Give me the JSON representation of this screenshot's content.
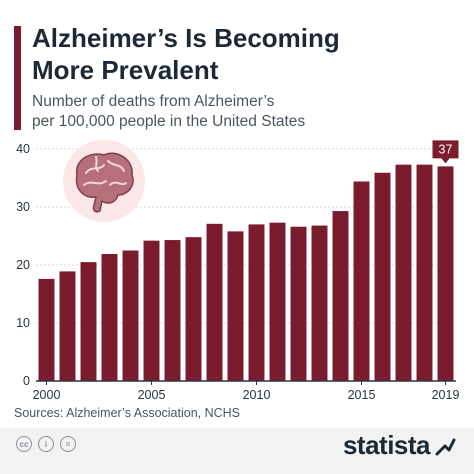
{
  "header": {
    "title_line1": "Alzheimer’s Is Becoming",
    "title_line2": "More Prevalent",
    "subtitle_line1": "Number of deaths from Alzheimer’s",
    "subtitle_line2": "per 100,000 people in the United States"
  },
  "colors": {
    "bar": "#7a1c2e",
    "accent": "#7a1c2e",
    "grid": "#d9d9d9",
    "axis_text": "#2a3540",
    "callout": "#7a1c2e",
    "brain": "#b5707c",
    "brain_bg": "#fbe7e7"
  },
  "icons": {
    "illustration": "brain-icon"
  },
  "chart_data": {
    "type": "bar",
    "x": [
      2000,
      2001,
      2002,
      2003,
      2004,
      2005,
      2006,
      2007,
      2008,
      2009,
      2010,
      2011,
      2012,
      2013,
      2014,
      2015,
      2016,
      2017,
      2018,
      2019
    ],
    "values": [
      17.6,
      18.9,
      20.5,
      21.9,
      22.5,
      24.2,
      24.3,
      24.8,
      27.1,
      25.8,
      27.0,
      27.3,
      26.6,
      26.8,
      29.3,
      34.4,
      35.9,
      37.3,
      37.3,
      37.0
    ],
    "x_tick_labels": [
      "2000",
      "2005",
      "2010",
      "2015",
      "2019"
    ],
    "y_ticks": [
      0,
      10,
      20,
      30,
      40
    ],
    "ylim": [
      0,
      40
    ],
    "grid": true,
    "callout": {
      "label": "37",
      "year": 2019
    }
  },
  "footer": {
    "source": "Sources: Alzheimer’s Association, NCHS",
    "license_icons": [
      "cc-icon",
      "by-icon",
      "nd-icon"
    ],
    "brand": "statista",
    "brand_icon": "statista-logo-icon"
  }
}
